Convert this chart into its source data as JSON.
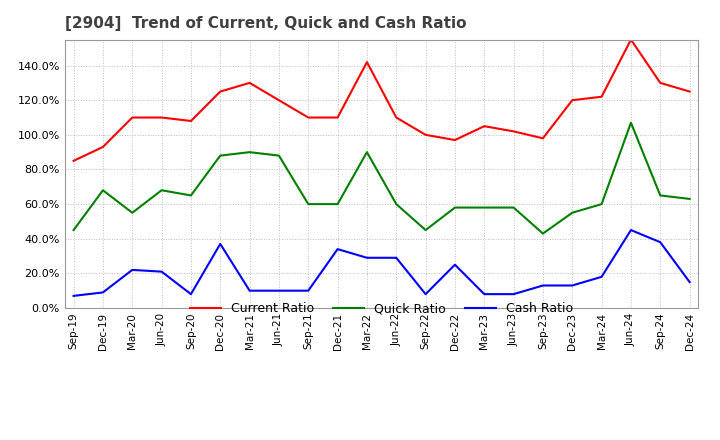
{
  "title": "[2904]  Trend of Current, Quick and Cash Ratio",
  "x_labels": [
    "Sep-19",
    "Dec-19",
    "Mar-20",
    "Jun-20",
    "Sep-20",
    "Dec-20",
    "Mar-21",
    "Jun-21",
    "Sep-21",
    "Dec-21",
    "Mar-22",
    "Jun-22",
    "Sep-22",
    "Dec-22",
    "Mar-23",
    "Jun-23",
    "Sep-23",
    "Dec-23",
    "Mar-24",
    "Jun-24",
    "Sep-24",
    "Dec-24"
  ],
  "current_ratio": [
    85,
    93,
    110,
    110,
    108,
    125,
    130,
    120,
    110,
    110,
    142,
    110,
    100,
    97,
    105,
    102,
    98,
    120,
    122,
    155,
    130,
    125
  ],
  "quick_ratio": [
    45,
    68,
    55,
    68,
    65,
    88,
    90,
    88,
    60,
    60,
    90,
    60,
    45,
    58,
    58,
    58,
    43,
    55,
    60,
    107,
    65,
    63
  ],
  "cash_ratio": [
    7,
    9,
    22,
    21,
    8,
    37,
    10,
    10,
    10,
    34,
    29,
    29,
    8,
    25,
    8,
    8,
    13,
    13,
    18,
    45,
    38,
    15
  ],
  "current_color": "#ff0000",
  "quick_color": "#008000",
  "cash_color": "#0000ff",
  "ylim": [
    0,
    155
  ],
  "yticks": [
    0,
    20,
    40,
    60,
    80,
    100,
    120,
    140
  ],
  "background_color": "#ffffff",
  "grid_color": "#bbbbbb",
  "title_color": "#404040",
  "title_fontsize": 11
}
